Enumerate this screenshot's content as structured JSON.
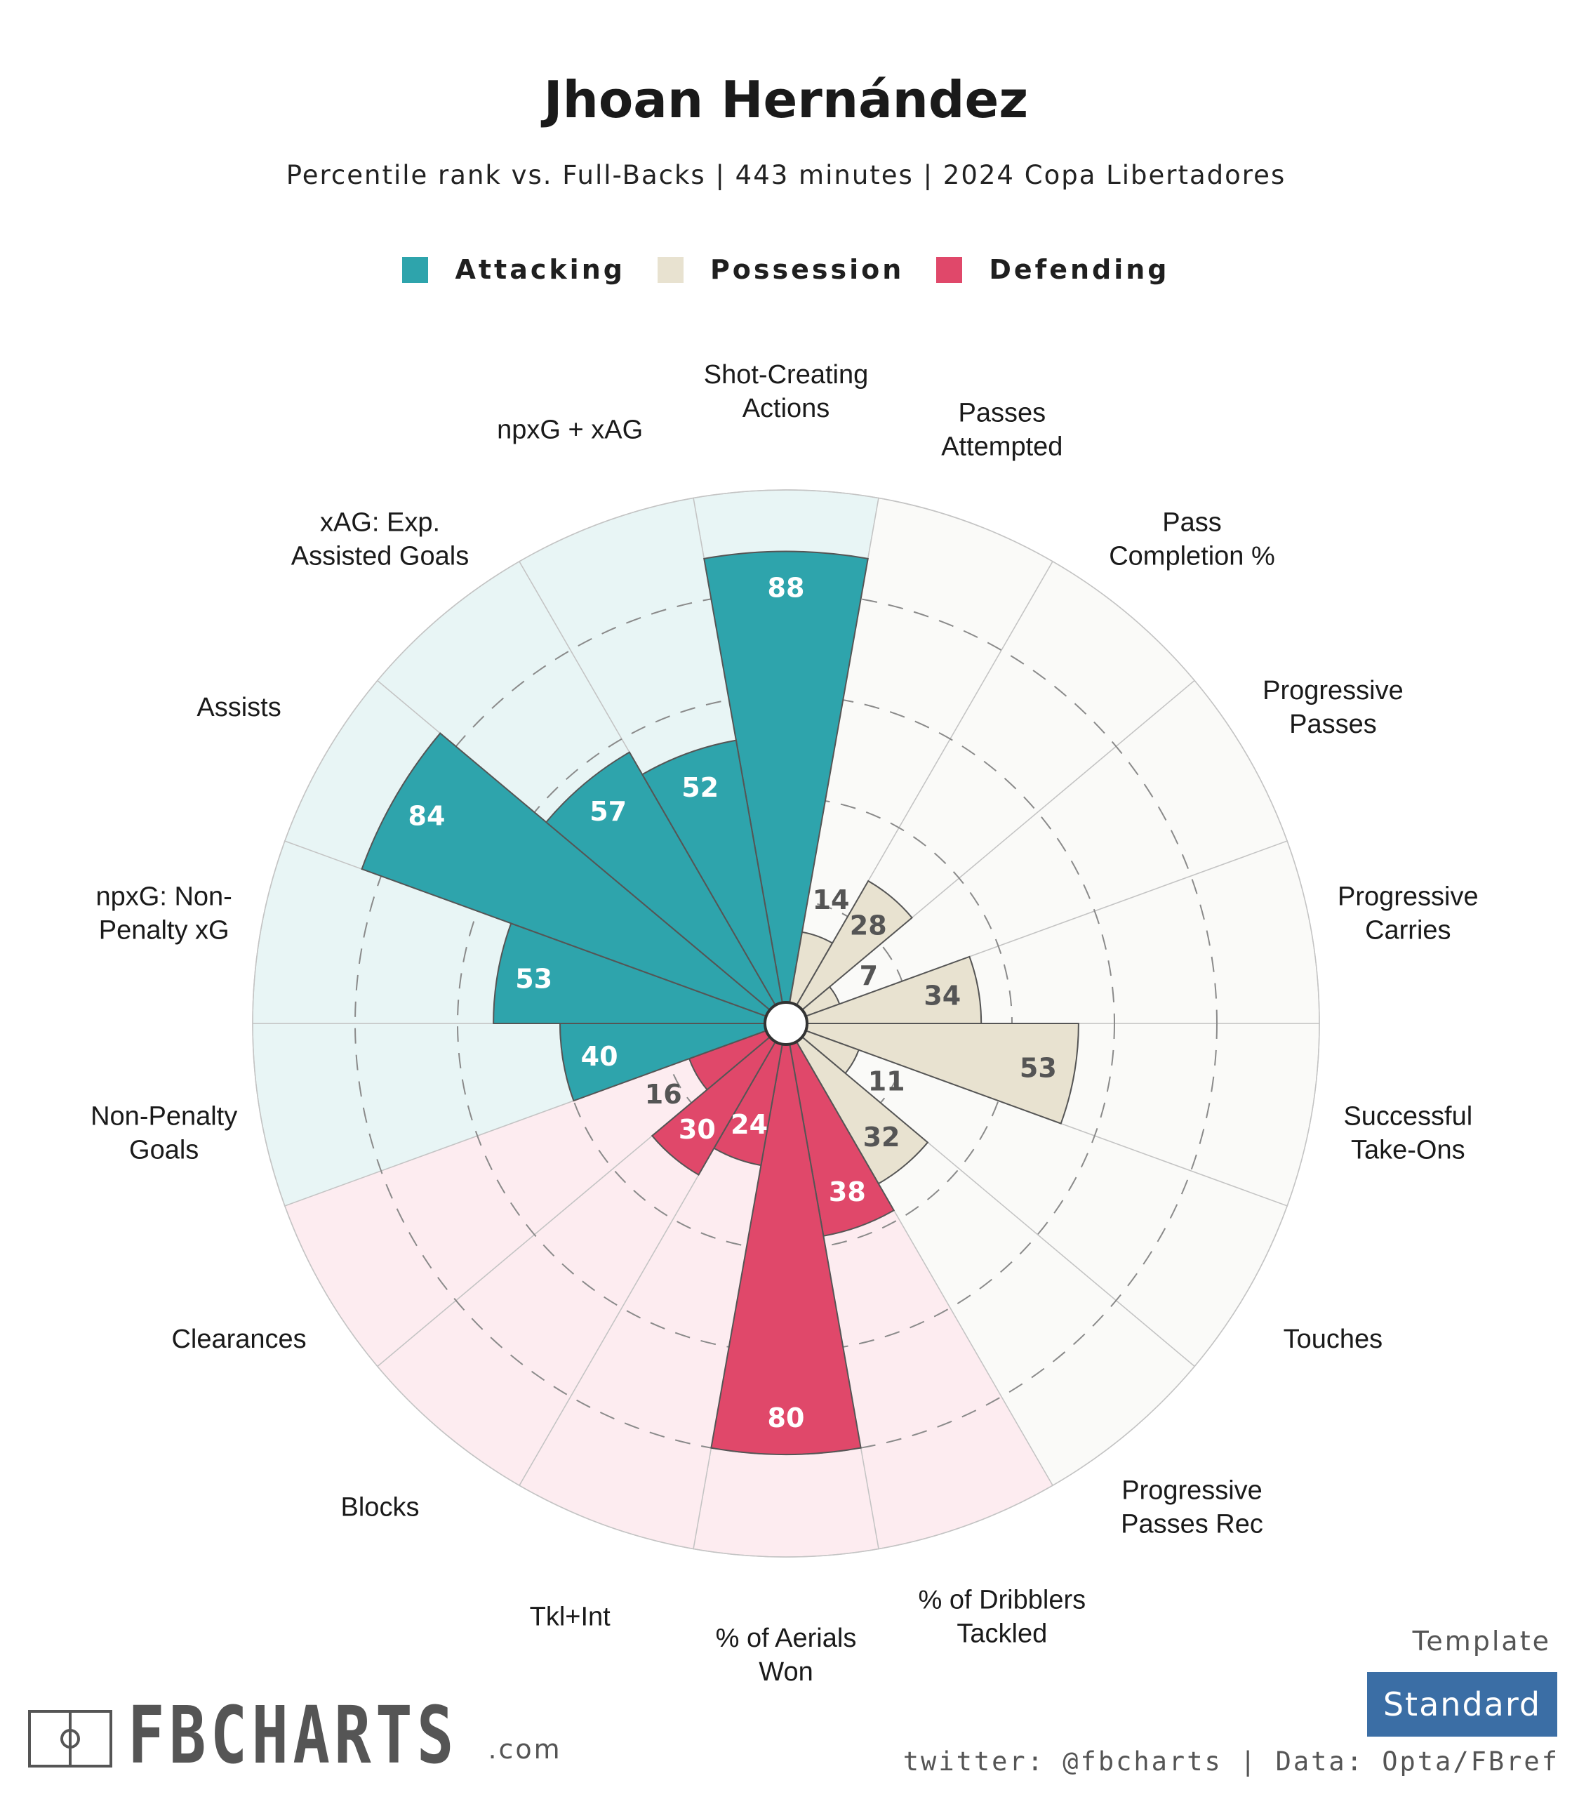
{
  "page": {
    "title": "Jhoan Hernández",
    "subtitle": "Percentile rank vs. Full-Backs | 443 minutes | 2024 Copa Libertadores"
  },
  "legend": [
    {
      "label": "Attacking",
      "color": "#2ea4ac"
    },
    {
      "label": "Possession",
      "color": "#e8e2d0"
    },
    {
      "label": "Defending",
      "color": "#e0486a"
    }
  ],
  "template": {
    "label": "Template",
    "value": "Standard"
  },
  "footer": {
    "credit": "twitter: @fbcharts | Data: Opta/FBref",
    "logo_text": "FBCHARTS",
    "logo_suffix": ".com"
  },
  "chart_data": {
    "type": "polar_bar",
    "title": "Jhoan Hernández",
    "subtitle": "Percentile rank vs. Full-Backs | 443 minutes | 2024 Copa Libertadores",
    "rmax": 100,
    "gridlines": [
      20,
      40,
      60,
      80
    ],
    "start": "top, clockwise",
    "colors": {
      "Attacking": {
        "bar": "#2ea4ac",
        "bg": "#e8f5f5",
        "value_text": "#ffffff"
      },
      "Possession": {
        "bar": "#e8e2d0",
        "bg": "#fafaf8",
        "value_text": "#555555"
      },
      "Defending": {
        "bar": "#e0486a",
        "bg": "#fdecf0",
        "value_text": "#ffffff"
      }
    },
    "metrics": [
      {
        "label": "Shot-Creating\nActions",
        "value": 88,
        "category": "Attacking"
      },
      {
        "label": "Passes\nAttempted",
        "value": 14,
        "category": "Possession"
      },
      {
        "label": "Pass\nCompletion %",
        "value": 28,
        "category": "Possession"
      },
      {
        "label": "Progressive\nPasses",
        "value": 7,
        "category": "Possession"
      },
      {
        "label": "Progressive\nCarries",
        "value": 34,
        "category": "Possession"
      },
      {
        "label": "Successful\nTake-Ons",
        "value": 53,
        "category": "Possession"
      },
      {
        "label": "Touches",
        "value": 11,
        "category": "Possession"
      },
      {
        "label": "Progressive\nPasses Rec",
        "value": 32,
        "category": "Possession"
      },
      {
        "label": "% of Dribblers\nTackled",
        "value": 38,
        "category": "Defending"
      },
      {
        "label": "% of Aerials\nWon",
        "value": 80,
        "category": "Defending"
      },
      {
        "label": "Tkl+Int",
        "value": 24,
        "category": "Defending"
      },
      {
        "label": "Blocks",
        "value": 30,
        "category": "Defending"
      },
      {
        "label": "Clearances",
        "value": 16,
        "category": "Defending"
      },
      {
        "label": "Non-Penalty\nGoals",
        "value": 40,
        "category": "Attacking"
      },
      {
        "label": "npxG: Non-\nPenalty xG",
        "value": 53,
        "category": "Attacking"
      },
      {
        "label": "Assists",
        "value": 84,
        "category": "Attacking"
      },
      {
        "label": "xAG: Exp.\nAssisted Goals",
        "value": 57,
        "category": "Attacking"
      },
      {
        "label": "npxG + xAG",
        "value": 52,
        "category": "Attacking"
      }
    ]
  }
}
